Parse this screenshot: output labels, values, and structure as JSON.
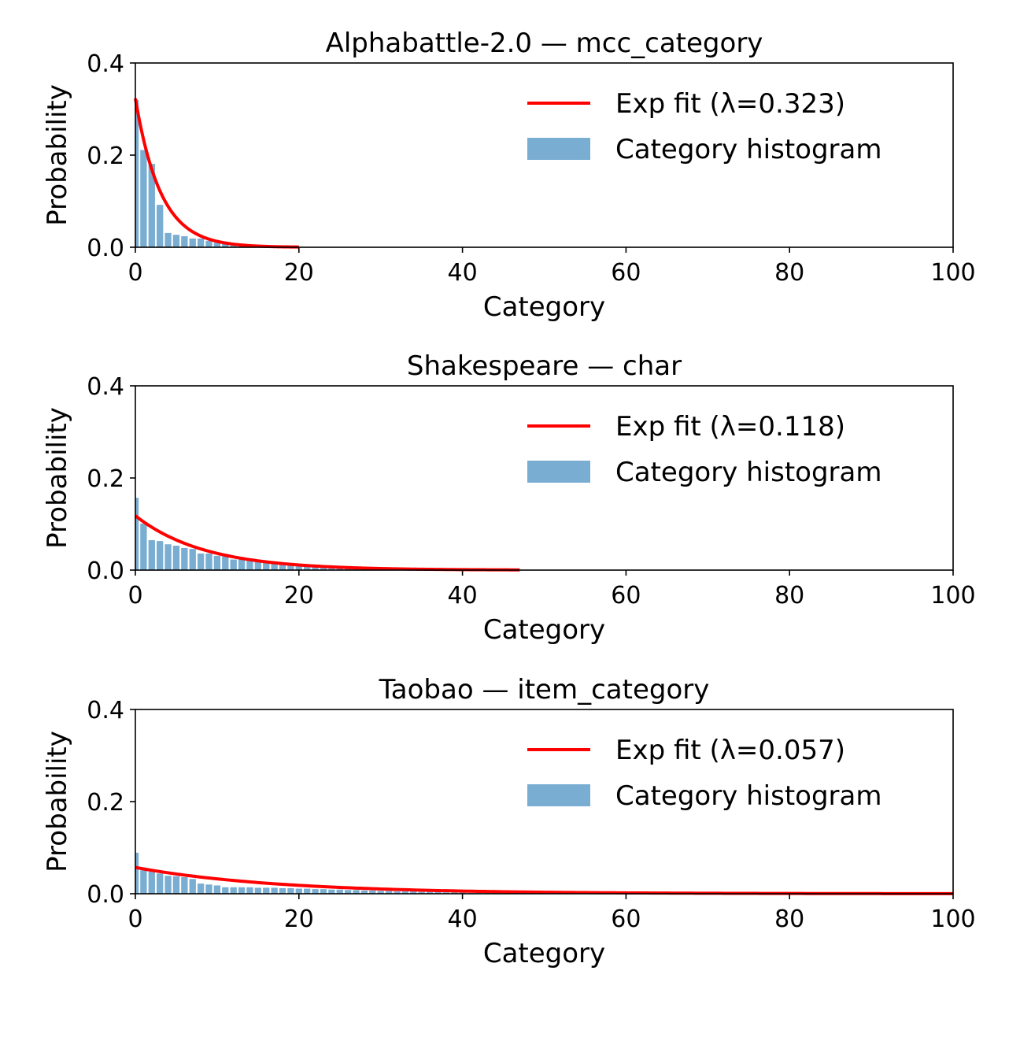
{
  "colors": {
    "fit": "#ff0000",
    "bars": "#79add2",
    "axis": "#000000"
  },
  "chart_data": [
    {
      "type": "bar",
      "title": "Alphabattle-2.0 — mcc_category",
      "xlabel": "Category",
      "ylabel": "Probability",
      "xlim": [
        0,
        100
      ],
      "ylim": [
        0,
        0.4
      ],
      "xticks": [
        "0",
        "20",
        "40",
        "60",
        "80",
        "100"
      ],
      "yticks": [
        "0.0",
        "0.2",
        "0.4"
      ],
      "legend": {
        "position": "top-right",
        "entries": [
          "Exp fit (λ=0.323)",
          "Category histogram"
        ]
      },
      "fit": {
        "lambda": 0.323,
        "x_max": 20
      },
      "histogram": {
        "categories": [
          0,
          1,
          2,
          3,
          4,
          5,
          6,
          7,
          8,
          9,
          10,
          11,
          12,
          13,
          14
        ],
        "values": [
          0.32,
          0.211,
          0.181,
          0.092,
          0.031,
          0.027,
          0.024,
          0.019,
          0.019,
          0.014,
          0.01,
          0.007,
          0.005,
          0.003,
          0.002
        ]
      }
    },
    {
      "type": "bar",
      "title": "Shakespeare — char",
      "xlabel": "Category",
      "ylabel": "Probability",
      "xlim": [
        0,
        100
      ],
      "ylim": [
        0,
        0.4
      ],
      "xticks": [
        "0",
        "20",
        "40",
        "60",
        "80",
        "100"
      ],
      "yticks": [
        "0.0",
        "0.2",
        "0.4"
      ],
      "legend": {
        "position": "top-right",
        "entries": [
          "Exp fit (λ=0.118)",
          "Category histogram"
        ]
      },
      "fit": {
        "lambda": 0.118,
        "x_max": 47
      },
      "histogram": {
        "categories": [
          0,
          1,
          2,
          3,
          4,
          5,
          6,
          7,
          8,
          9,
          10,
          11,
          12,
          13,
          14,
          15,
          16,
          17,
          18,
          19,
          20,
          21,
          22,
          23,
          24,
          25,
          26,
          27,
          28,
          29,
          30
        ],
        "values": [
          0.157,
          0.101,
          0.065,
          0.063,
          0.056,
          0.053,
          0.048,
          0.046,
          0.036,
          0.036,
          0.031,
          0.03,
          0.023,
          0.023,
          0.021,
          0.02,
          0.018,
          0.016,
          0.014,
          0.013,
          0.011,
          0.01,
          0.008,
          0.007,
          0.006,
          0.005,
          0.004,
          0.003,
          0.003,
          0.002,
          0.002
        ]
      }
    },
    {
      "type": "bar",
      "title": "Taobao — item_category",
      "xlabel": "Category",
      "ylabel": "Probability",
      "xlim": [
        0,
        100
      ],
      "ylim": [
        0,
        0.4
      ],
      "xticks": [
        "0",
        "20",
        "40",
        "60",
        "80",
        "100"
      ],
      "yticks": [
        "0.0",
        "0.2",
        "0.4"
      ],
      "legend": {
        "position": "top-right",
        "entries": [
          "Exp fit (λ=0.057)",
          "Category histogram"
        ]
      },
      "fit": {
        "lambda": 0.057,
        "x_max": 100
      },
      "histogram": {
        "categories": [
          0,
          1,
          2,
          3,
          4,
          5,
          6,
          7,
          8,
          9,
          10,
          11,
          12,
          13,
          14,
          15,
          16,
          17,
          18,
          19,
          20,
          21,
          22,
          23,
          24,
          25,
          26,
          27,
          28,
          29,
          30,
          31,
          32,
          33,
          34,
          35,
          36,
          37,
          38,
          39,
          40,
          41,
          42,
          43,
          44,
          45
        ],
        "values": [
          0.089,
          0.051,
          0.048,
          0.044,
          0.039,
          0.038,
          0.036,
          0.032,
          0.022,
          0.02,
          0.018,
          0.014,
          0.014,
          0.014,
          0.014,
          0.013,
          0.013,
          0.013,
          0.012,
          0.012,
          0.011,
          0.011,
          0.01,
          0.01,
          0.009,
          0.009,
          0.008,
          0.008,
          0.007,
          0.007,
          0.006,
          0.006,
          0.005,
          0.005,
          0.005,
          0.004,
          0.004,
          0.004,
          0.003,
          0.003,
          0.003,
          0.002,
          0.002,
          0.002,
          0.002,
          0.001
        ]
      }
    }
  ]
}
